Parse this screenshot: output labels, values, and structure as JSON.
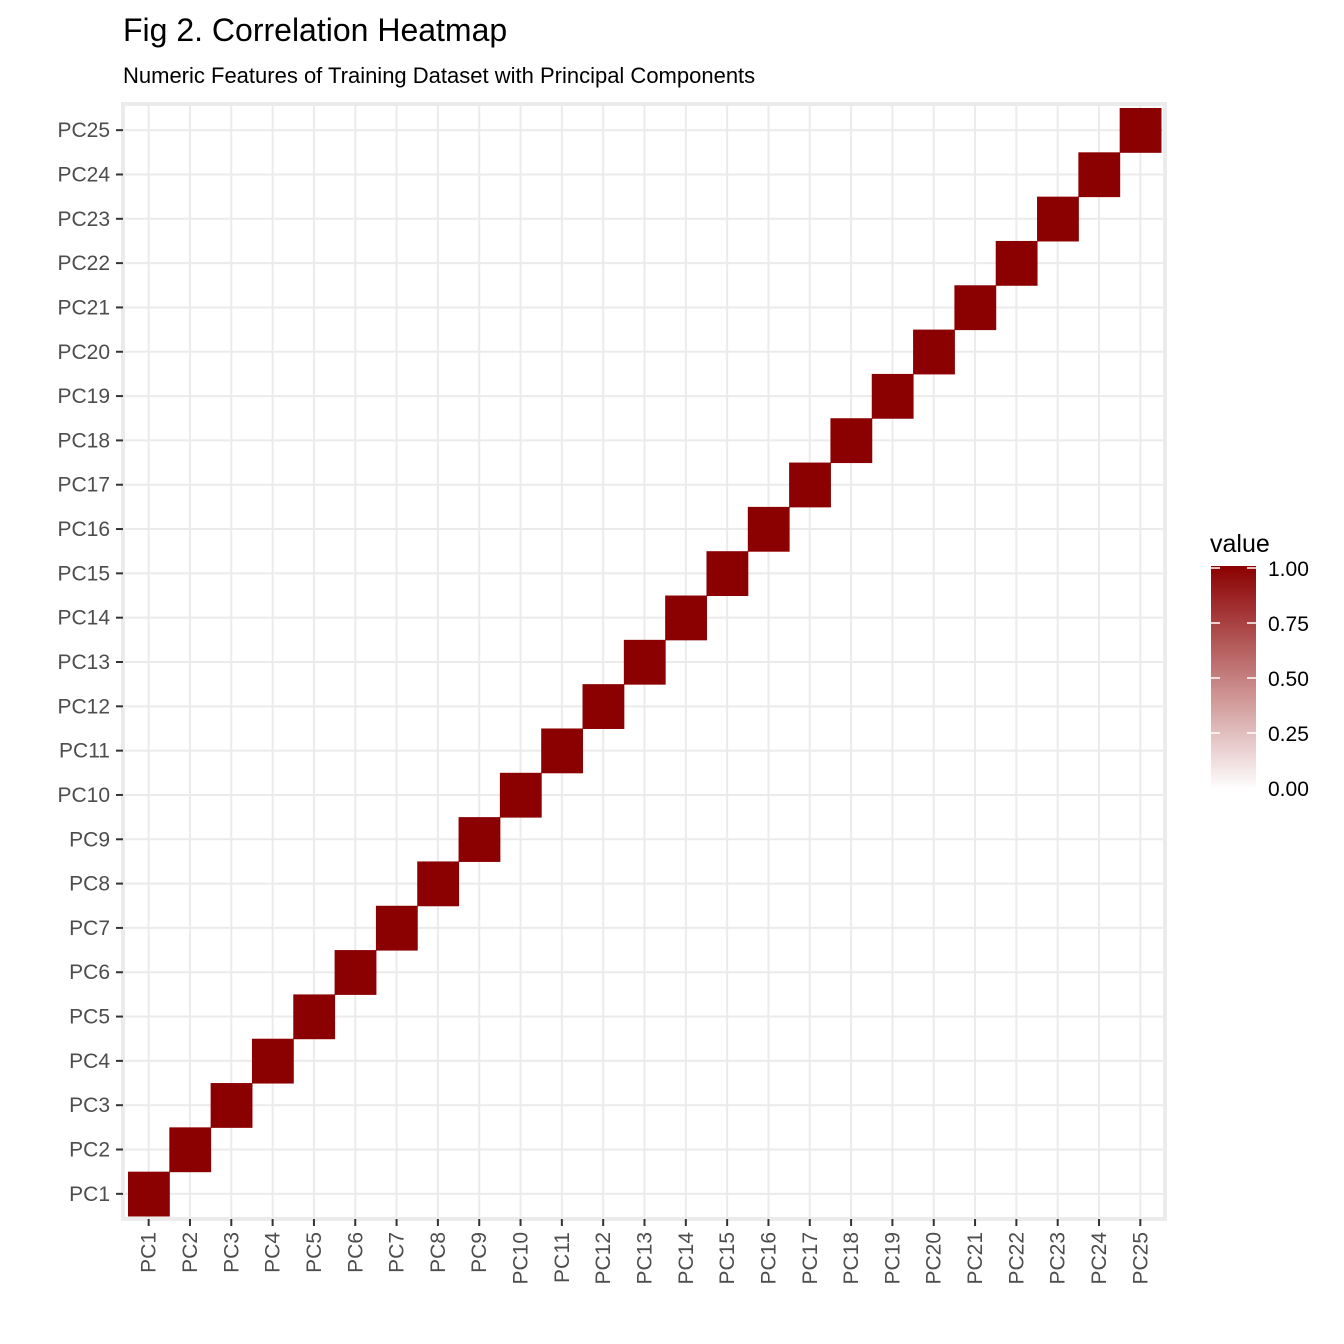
{
  "chart_data": {
    "type": "heatmap",
    "title": "Fig 2. Correlation Heatmap",
    "subtitle": "Numeric Features of Training Dataset with Principal Components",
    "xlabel": "",
    "ylabel": "",
    "x_categories": [
      "PC1",
      "PC2",
      "PC3",
      "PC4",
      "PC5",
      "PC6",
      "PC7",
      "PC8",
      "PC9",
      "PC10",
      "PC11",
      "PC12",
      "PC13",
      "PC14",
      "PC15",
      "PC16",
      "PC17",
      "PC18",
      "PC19",
      "PC20",
      "PC21",
      "PC22",
      "PC23",
      "PC24",
      "PC25"
    ],
    "y_categories": [
      "PC1",
      "PC2",
      "PC3",
      "PC4",
      "PC5",
      "PC6",
      "PC7",
      "PC8",
      "PC9",
      "PC10",
      "PC11",
      "PC12",
      "PC13",
      "PC14",
      "PC15",
      "PC16",
      "PC17",
      "PC18",
      "PC19",
      "PC20",
      "PC21",
      "PC22",
      "PC23",
      "PC24",
      "PC25"
    ],
    "value_description": "correlation matrix; diagonal cells equal 1.00, all off-diagonal cells approximately 0.00",
    "diagonal_value": 1.0,
    "off_diagonal_value": 0.0,
    "color_low": "#ffffff",
    "color_high": "#8b0000",
    "panel_background": "#ffffff",
    "grid_color": "#ebebeb",
    "grid": true,
    "x_tick_rotation": "vertical",
    "legend": {
      "title": "value",
      "position": "right",
      "ticks": [
        "1.00",
        "0.75",
        "0.50",
        "0.25",
        "0.00"
      ],
      "tick_values": [
        1.0,
        0.75,
        0.5,
        0.25,
        0.0
      ],
      "range": [
        0,
        1
      ]
    }
  }
}
